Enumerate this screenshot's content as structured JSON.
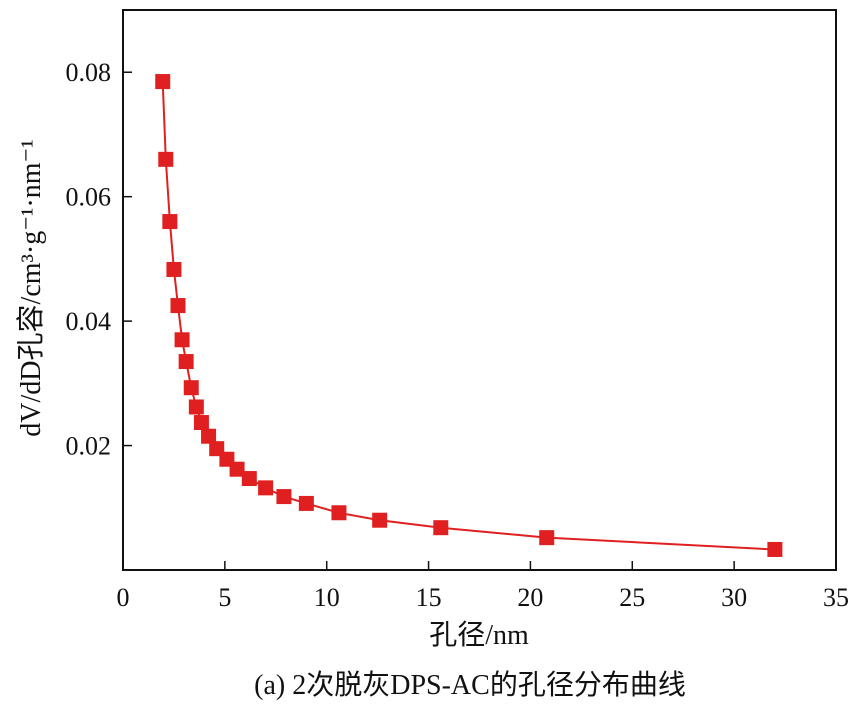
{
  "chart_data": {
    "type": "line",
    "markers": "square",
    "title": "",
    "caption": "(a) 2次脱灰DPS-AC的孔径分布曲线",
    "xlabel": "孔径/nm",
    "ylabel": "dV/dD孔容/cm³·g⁻¹·nm⁻¹",
    "xlim": [
      0,
      35
    ],
    "ylim": [
      0,
      0.09
    ],
    "xticks": [
      0,
      5,
      10,
      15,
      20,
      25,
      30,
      35
    ],
    "yticks": [
      0.02,
      0.04,
      0.06,
      0.08
    ],
    "xtick_labels": [
      "0",
      "5",
      "10",
      "15",
      "20",
      "25",
      "30",
      "35"
    ],
    "ytick_labels": [
      "0.02",
      "0.04",
      "0.06",
      "0.08"
    ],
    "grid": false,
    "legend": "none",
    "series": [
      {
        "color": "#e02020",
        "x": [
          1.95,
          2.1,
          2.3,
          2.5,
          2.7,
          2.9,
          3.1,
          3.35,
          3.6,
          3.85,
          4.2,
          4.6,
          5.1,
          5.6,
          6.2,
          7.0,
          7.9,
          9.0,
          10.6,
          12.6,
          15.6,
          20.8,
          32.0
        ],
        "y": [
          0.0785,
          0.066,
          0.056,
          0.0483,
          0.0425,
          0.037,
          0.0335,
          0.0293,
          0.0262,
          0.0237,
          0.0215,
          0.0195,
          0.0178,
          0.0162,
          0.0147,
          0.0132,
          0.0118,
          0.0107,
          0.0092,
          0.008,
          0.0068,
          0.0052,
          0.0033
        ]
      }
    ]
  }
}
